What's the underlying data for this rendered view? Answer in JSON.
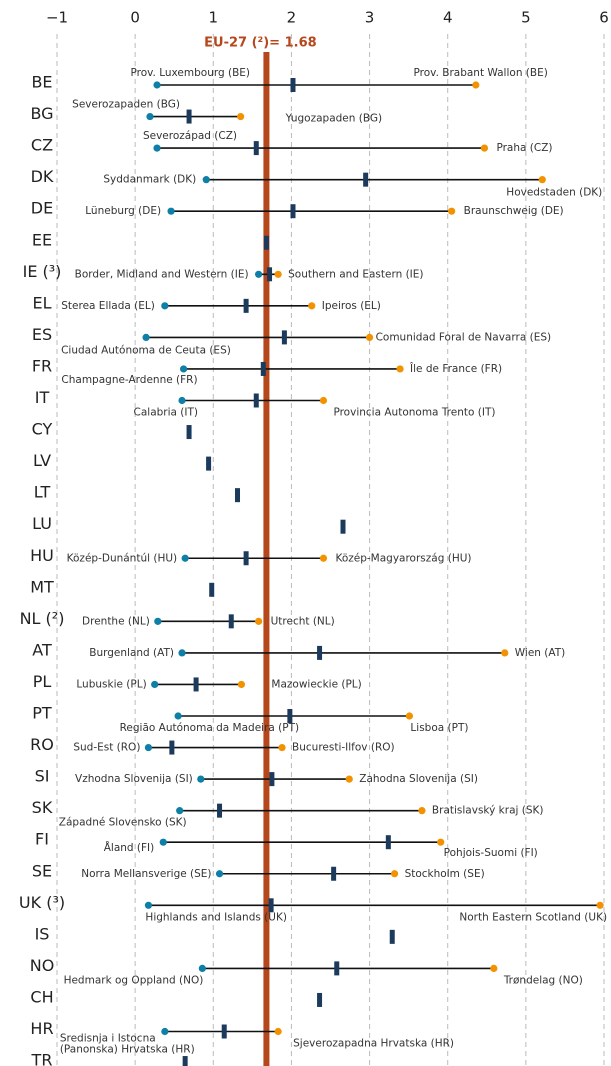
{
  "chart_data": {
    "type": "range",
    "xlim": [
      -1,
      6
    ],
    "xticks": [
      {
        "value": -1,
        "label": "−1"
      },
      0,
      1,
      2,
      3,
      4,
      5,
      6
    ],
    "grid": true,
    "reference": {
      "value": 1.68,
      "label": "EU-27 (²)= 1.68",
      "color": "#b5471b"
    },
    "colors": {
      "low": "#0e7fa6",
      "high": "#f39200",
      "national": "#1b3a5c",
      "range": "#111111"
    },
    "rows": [
      {
        "country": "BE",
        "low": 0.28,
        "low_name": "Prov. Luxembourg (BE)",
        "national": 2.02,
        "high": 4.36,
        "high_name": "Prov. Brabant Wallon (BE)"
      },
      {
        "country": "BG",
        "low": 0.19,
        "low_name": "Severozapaden (BG)",
        "national": 0.69,
        "high": 1.35,
        "high_name": "Yugozapaden (BG)"
      },
      {
        "country": "CZ",
        "low": 0.28,
        "low_name": "Severozápad (CZ)",
        "national": 1.55,
        "high": 4.47,
        "high_name": "Praha (CZ)"
      },
      {
        "country": "DK",
        "low": 0.91,
        "low_name": "Syddanmark (DK)",
        "national": 2.95,
        "high": 5.21,
        "high_name": "Hovedstaden (DK)"
      },
      {
        "country": "DE",
        "low": 0.46,
        "low_name": "Lüneburg (DE)",
        "national": 2.02,
        "high": 4.05,
        "high_name": "Braunschweig (DE)"
      },
      {
        "country": "EE",
        "national": 1.68
      },
      {
        "country": "IE (³)",
        "low": 1.58,
        "low_name": "Border, Midland and Western (IE)",
        "national": 1.72,
        "high": 1.83,
        "high_name": "Southern and Eastern (IE)"
      },
      {
        "country": "EL",
        "low": 0.38,
        "low_name": "Sterea Ellada (EL)",
        "national": 1.42,
        "high": 2.26,
        "high_name": "Ipeiros (EL)"
      },
      {
        "country": "ES",
        "low": 0.14,
        "low_name": "Ciudad Autónoma de Ceuta (ES)",
        "national": 1.91,
        "high": 3.0,
        "high_name": "Comunidad Foral de Navarra (ES)"
      },
      {
        "country": "FR",
        "low": 0.62,
        "low_name": "Champagne-Ardenne (FR)",
        "national": 1.64,
        "high": 3.39,
        "high_name": "Île de France (FR)"
      },
      {
        "country": "IT",
        "low": 0.6,
        "low_name": "Calabria (IT)",
        "national": 1.55,
        "high": 2.41,
        "high_name": "Provincia Autonoma Trento (IT)"
      },
      {
        "country": "CY",
        "national": 0.69
      },
      {
        "country": "LV",
        "national": 0.94
      },
      {
        "country": "LT",
        "national": 1.31
      },
      {
        "country": "LU",
        "national": 2.66
      },
      {
        "country": "HU",
        "low": 0.64,
        "low_name": "Közép-Dunántúl (HU)",
        "national": 1.42,
        "high": 2.41,
        "high_name": "Közép-Magyarország (HU)"
      },
      {
        "country": "MT",
        "national": 0.98
      },
      {
        "country": "NL (²)",
        "low": 0.29,
        "low_name": "Drenthe (NL)",
        "national": 1.23,
        "high": 1.58,
        "high_name": "Utrecht (NL)"
      },
      {
        "country": "AT",
        "low": 0.6,
        "low_name": "Burgenland (AT)",
        "national": 2.36,
        "high": 4.73,
        "high_name": "Wien (AT)"
      },
      {
        "country": "PL",
        "low": 0.25,
        "low_name": "Lubuskie (PL)",
        "national": 0.78,
        "high": 1.36,
        "high_name": "Mazowieckie (PL)"
      },
      {
        "country": "PT",
        "low": 0.55,
        "low_name": "Região Autónoma da Madeira (PT)",
        "national": 1.98,
        "high": 3.51,
        "high_name": "Lisboa (PT)"
      },
      {
        "country": "RO",
        "low": 0.17,
        "low_name": "Sud-Est (RO)",
        "national": 0.47,
        "high": 1.88,
        "high_name": "Bucuresti-Ilfov (RO)"
      },
      {
        "country": "SI",
        "low": 0.84,
        "low_name": "Vzhodna Slovenija (SI)",
        "national": 1.75,
        "high": 2.74,
        "high_name": "Zahodna Slovenija (SI)"
      },
      {
        "country": "SK",
        "low": 0.57,
        "low_name": "Západné Slovensko (SK)",
        "national": 1.08,
        "high": 3.67,
        "high_name": "Bratislavský kraj (SK)"
      },
      {
        "country": "FI",
        "low": 0.36,
        "low_name": "Åland (FI)",
        "national": 3.24,
        "high": 3.91,
        "high_name": "Pohjois-Suomi (FI)"
      },
      {
        "country": "SE",
        "low": 1.08,
        "low_name": "Norra Mellansverige (SE)",
        "national": 2.54,
        "high": 3.32,
        "high_name": "Stockholm (SE)"
      },
      {
        "country": "UK (³)",
        "low": 0.17,
        "low_name": "Highlands and Islands (UK)",
        "national": 1.74,
        "high": 5.95,
        "high_name": "North Eastern Scotland (UK)"
      },
      {
        "country": "IS",
        "national": 3.29
      },
      {
        "country": "NO",
        "low": 0.86,
        "low_name": "Hedmark og Oppland (NO)",
        "national": 2.58,
        "high": 4.59,
        "high_name": "Trøndelag (NO)"
      },
      {
        "country": "CH",
        "national": 2.36
      },
      {
        "country": "HR",
        "low": 0.38,
        "low_name": [
          "Sredisnja i Istocna",
          "(Panonska) Hrvatska (HR)"
        ],
        "national": 1.14,
        "high": 1.83,
        "high_name": "Sjeverozapadna Hrvatska (HR)"
      },
      {
        "country": "TR",
        "national": 0.64
      }
    ]
  }
}
